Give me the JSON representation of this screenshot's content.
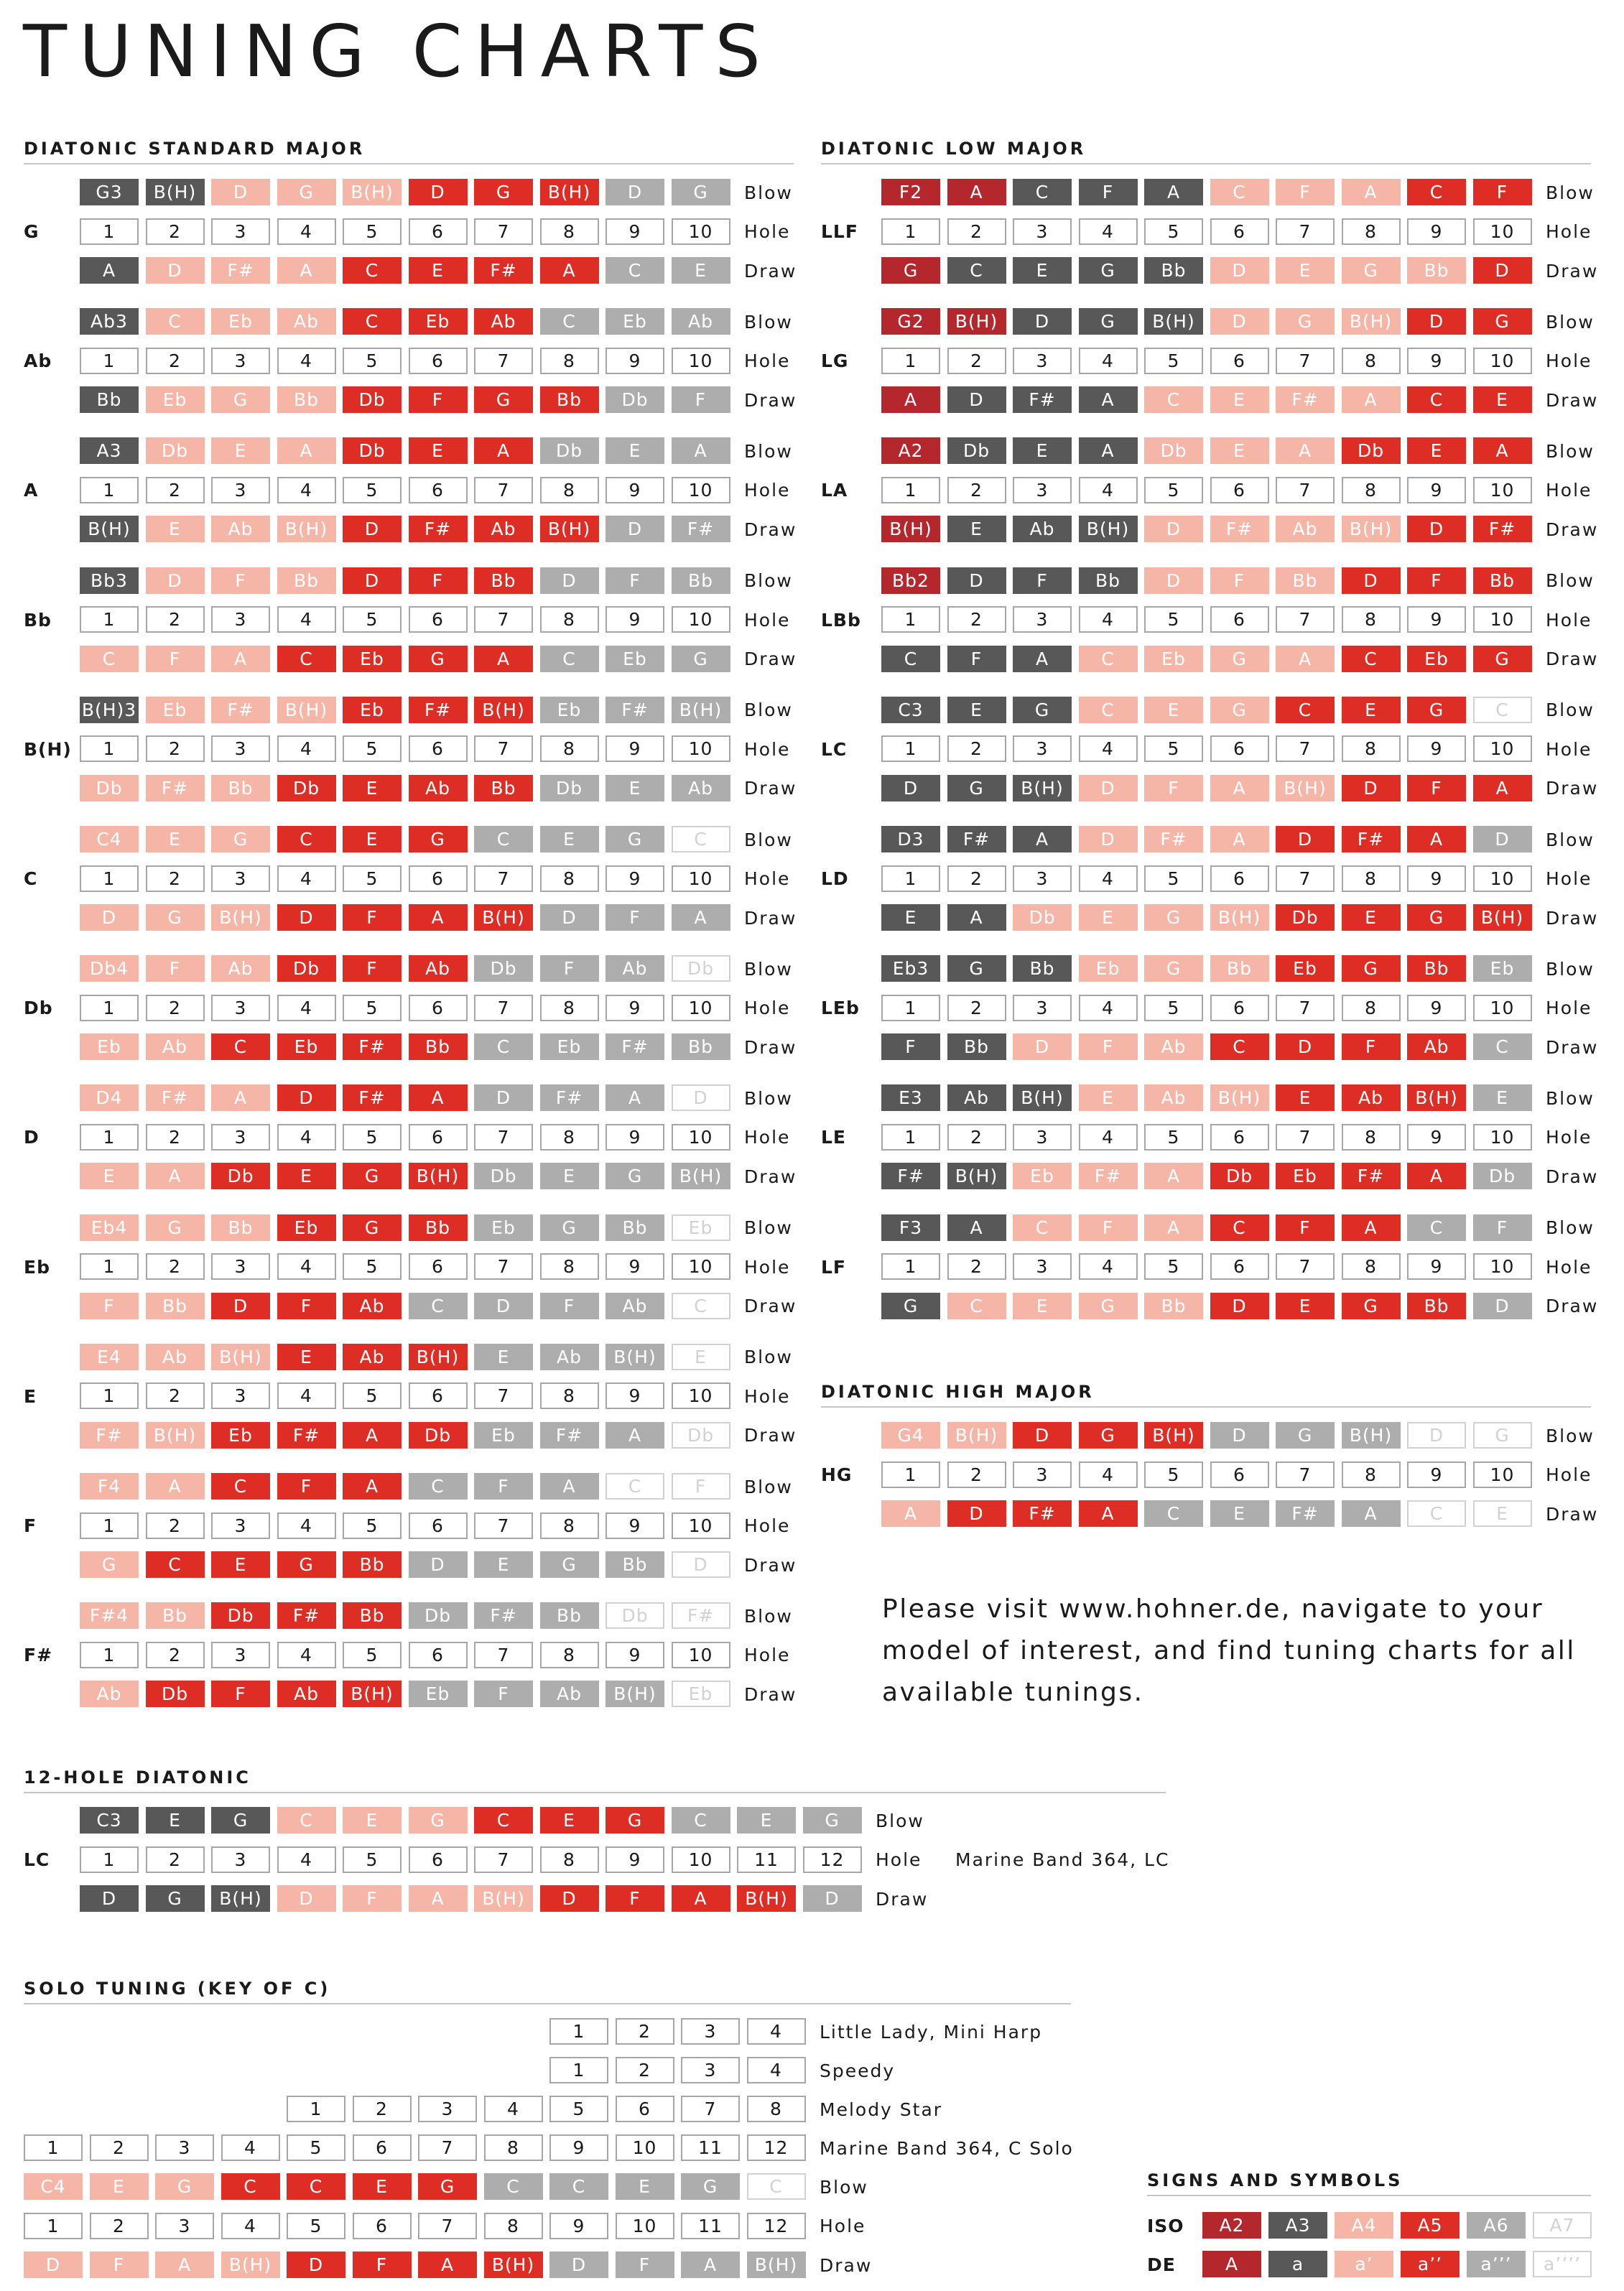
{
  "title": "TUNING CHARTS",
  "labels": {
    "blow": "Blow",
    "hole": "Hole",
    "draw": "Draw"
  },
  "colors": {
    "dark": "#585858",
    "gray": "#adadad",
    "faint": "#d2d2d2",
    "red": "#dd2d24",
    "pink": "#f5b6a8",
    "darkred": "#b3272d",
    "white": "#ffffff",
    "border": "#a6a6a6",
    "text_dark": "#1a1a1a"
  },
  "style_legend": {
    "D": "dark gray, octave 3 (ISO A3)",
    "G": "mid gray, octave 6 (ISO A6)",
    "g": "very light gray, octave 7 (ISO A7)",
    "R": "red, octave 5 (ISO A5)",
    "P": "light pink, octave 4 (ISO A4)",
    "K": "dark red, octave 2 (ISO A2)"
  },
  "sections": {
    "diatonic_standard": {
      "title": "DIATONIC STANDARD MAJOR",
      "charts": [
        {
          "key": "G",
          "blow": [
            "G3",
            "B(H)",
            "D",
            "G",
            "B(H)",
            "D",
            "G",
            "B(H)",
            "D",
            "G"
          ],
          "blow_styles": "DDPPPRRRGG",
          "draw": [
            "A",
            "D",
            "F#",
            "A",
            "C",
            "E",
            "F#",
            "A",
            "C",
            "E"
          ],
          "draw_styles": "DPPPRRRRGG"
        },
        {
          "key": "Ab",
          "blow": [
            "Ab3",
            "C",
            "Eb",
            "Ab",
            "C",
            "Eb",
            "Ab",
            "C",
            "Eb",
            "Ab"
          ],
          "blow_styles": "DPPPRRRGGG",
          "draw": [
            "Bb",
            "Eb",
            "G",
            "Bb",
            "Db",
            "F",
            "G",
            "Bb",
            "Db",
            "F"
          ],
          "draw_styles": "DPPPRRRRGG"
        },
        {
          "key": "A",
          "blow": [
            "A3",
            "Db",
            "E",
            "A",
            "Db",
            "E",
            "A",
            "Db",
            "E",
            "A"
          ],
          "blow_styles": "DPPPRRRGGG",
          "draw": [
            "B(H)",
            "E",
            "Ab",
            "B(H)",
            "D",
            "F#",
            "Ab",
            "B(H)",
            "D",
            "F#"
          ],
          "draw_styles": "DPPPRRRRGG"
        },
        {
          "key": "Bb",
          "blow": [
            "Bb3",
            "D",
            "F",
            "Bb",
            "D",
            "F",
            "Bb",
            "D",
            "F",
            "Bb"
          ],
          "blow_styles": "DPPPRRRGGG",
          "draw": [
            "C",
            "F",
            "A",
            "C",
            "Eb",
            "G",
            "A",
            "C",
            "Eb",
            "G"
          ],
          "draw_styles": "PPPRRRRGGG"
        },
        {
          "key": "B(H)",
          "blow": [
            "B(H)3",
            "Eb",
            "F#",
            "B(H)",
            "Eb",
            "F#",
            "B(H)",
            "Eb",
            "F#",
            "B(H)"
          ],
          "blow_styles": "DPPPRRRGGG",
          "draw": [
            "Db",
            "F#",
            "Bb",
            "Db",
            "E",
            "Ab",
            "Bb",
            "Db",
            "E",
            "Ab"
          ],
          "draw_styles": "PPPRRRRGGG"
        },
        {
          "key": "C",
          "blow": [
            "C4",
            "E",
            "G",
            "C",
            "E",
            "G",
            "C",
            "E",
            "G",
            "C"
          ],
          "blow_styles": "PPPRRRGGGg",
          "draw": [
            "D",
            "G",
            "B(H)",
            "D",
            "F",
            "A",
            "B(H)",
            "D",
            "F",
            "A"
          ],
          "draw_styles": "PPPRRRRGGG"
        },
        {
          "key": "Db",
          "blow": [
            "Db4",
            "F",
            "Ab",
            "Db",
            "F",
            "Ab",
            "Db",
            "F",
            "Ab",
            "Db"
          ],
          "blow_styles": "PPPRRRGGGg",
          "draw": [
            "Eb",
            "Ab",
            "C",
            "Eb",
            "F#",
            "Bb",
            "C",
            "Eb",
            "F#",
            "Bb"
          ],
          "draw_styles": "PPRRRRGGGG"
        },
        {
          "key": "D",
          "blow": [
            "D4",
            "F#",
            "A",
            "D",
            "F#",
            "A",
            "D",
            "F#",
            "A",
            "D"
          ],
          "blow_styles": "PPPRRRGGGg",
          "draw": [
            "E",
            "A",
            "Db",
            "E",
            "G",
            "B(H)",
            "Db",
            "E",
            "G",
            "B(H)"
          ],
          "draw_styles": "PPRRRRGGGG"
        },
        {
          "key": "Eb",
          "blow": [
            "Eb4",
            "G",
            "Bb",
            "Eb",
            "G",
            "Bb",
            "Eb",
            "G",
            "Bb",
            "Eb"
          ],
          "blow_styles": "PPPRRRGGGg",
          "draw": [
            "F",
            "Bb",
            "D",
            "F",
            "Ab",
            "C",
            "D",
            "F",
            "Ab",
            "C"
          ],
          "draw_styles": "PPRRRGGGGg"
        },
        {
          "key": "E",
          "blow": [
            "E4",
            "Ab",
            "B(H)",
            "E",
            "Ab",
            "B(H)",
            "E",
            "Ab",
            "B(H)",
            "E"
          ],
          "blow_styles": "PPPRRRGGGg",
          "draw": [
            "F#",
            "B(H)",
            "Eb",
            "F#",
            "A",
            "Db",
            "Eb",
            "F#",
            "A",
            "Db"
          ],
          "draw_styles": "PPRRRRGGGg"
        },
        {
          "key": "F",
          "blow": [
            "F4",
            "A",
            "C",
            "F",
            "A",
            "C",
            "F",
            "A",
            "C",
            "F"
          ],
          "blow_styles": "PPRRRGGGgg",
          "draw": [
            "G",
            "C",
            "E",
            "G",
            "Bb",
            "D",
            "E",
            "G",
            "Bb",
            "D"
          ],
          "draw_styles": "PRRRRGGGGg"
        },
        {
          "key": "F#",
          "blow": [
            "F#4",
            "Bb",
            "Db",
            "F#",
            "Bb",
            "Db",
            "F#",
            "Bb",
            "Db",
            "F#"
          ],
          "blow_styles": "PPRRRGGGgg",
          "draw": [
            "Ab",
            "Db",
            "F",
            "Ab",
            "B(H)",
            "Eb",
            "F",
            "Ab",
            "B(H)",
            "Eb"
          ],
          "draw_styles": "PRRRRGGGGg"
        }
      ]
    },
    "diatonic_low": {
      "title": "DIATONIC LOW MAJOR",
      "charts": [
        {
          "key": "LLF",
          "blow": [
            "F2",
            "A",
            "C",
            "F",
            "A",
            "C",
            "F",
            "A",
            "C",
            "F"
          ],
          "blow_styles": "KKDDDPPPRR",
          "draw": [
            "G",
            "C",
            "E",
            "G",
            "Bb",
            "D",
            "E",
            "G",
            "Bb",
            "D"
          ],
          "draw_styles": "KDDDDPPPPR"
        },
        {
          "key": "LG",
          "blow": [
            "G2",
            "B(H)",
            "D",
            "G",
            "B(H)",
            "D",
            "G",
            "B(H)",
            "D",
            "G"
          ],
          "blow_styles": "KKDDDPPPRR",
          "draw": [
            "A",
            "D",
            "F#",
            "A",
            "C",
            "E",
            "F#",
            "A",
            "C",
            "E"
          ],
          "draw_styles": "KDDDPPPPRR"
        },
        {
          "key": "LA",
          "blow": [
            "A2",
            "Db",
            "E",
            "A",
            "Db",
            "E",
            "A",
            "Db",
            "E",
            "A"
          ],
          "blow_styles": "KDDDPPPRRR",
          "draw": [
            "B(H)",
            "E",
            "Ab",
            "B(H)",
            "D",
            "F#",
            "Ab",
            "B(H)",
            "D",
            "F#"
          ],
          "draw_styles": "KDDDPPPPRR"
        },
        {
          "key": "LBb",
          "blow": [
            "Bb2",
            "D",
            "F",
            "Bb",
            "D",
            "F",
            "Bb",
            "D",
            "F",
            "Bb"
          ],
          "blow_styles": "KDDDPPPRRR",
          "draw": [
            "C",
            "F",
            "A",
            "C",
            "Eb",
            "G",
            "A",
            "C",
            "Eb",
            "G"
          ],
          "draw_styles": "DDDPPPPRRR"
        },
        {
          "key": "LC",
          "blow": [
            "C3",
            "E",
            "G",
            "C",
            "E",
            "G",
            "C",
            "E",
            "G",
            "C"
          ],
          "blow_styles": "DDDPPPRRRg",
          "draw": [
            "D",
            "G",
            "B(H)",
            "D",
            "F",
            "A",
            "B(H)",
            "D",
            "F",
            "A"
          ],
          "draw_styles": "DDDPPPPRRR"
        },
        {
          "key": "LD",
          "blow": [
            "D3",
            "F#",
            "A",
            "D",
            "F#",
            "A",
            "D",
            "F#",
            "A",
            "D"
          ],
          "blow_styles": "DDDPPPRRRG",
          "draw": [
            "E",
            "A",
            "Db",
            "E",
            "G",
            "B(H)",
            "Db",
            "E",
            "G",
            "B(H)"
          ],
          "draw_styles": "DDPPPPRRRR"
        },
        {
          "key": "LEb",
          "blow": [
            "Eb3",
            "G",
            "Bb",
            "Eb",
            "G",
            "Bb",
            "Eb",
            "G",
            "Bb",
            "Eb"
          ],
          "blow_styles": "DDDPPPRRRG",
          "draw": [
            "F",
            "Bb",
            "D",
            "F",
            "Ab",
            "C",
            "D",
            "F",
            "Ab",
            "C"
          ],
          "draw_styles": "DDPPPRRRRG"
        },
        {
          "key": "LE",
          "blow": [
            "E3",
            "Ab",
            "B(H)",
            "E",
            "Ab",
            "B(H)",
            "E",
            "Ab",
            "B(H)",
            "E"
          ],
          "blow_styles": "DDDPPPRRRG",
          "draw": [
            "F#",
            "B(H)",
            "Eb",
            "F#",
            "A",
            "Db",
            "Eb",
            "F#",
            "A",
            "Db"
          ],
          "draw_styles": "DDPPPRRRRG"
        },
        {
          "key": "LF",
          "blow": [
            "F3",
            "A",
            "C",
            "F",
            "A",
            "C",
            "F",
            "A",
            "C",
            "F"
          ],
          "blow_styles": "DDPPPRRRGG",
          "draw": [
            "G",
            "C",
            "E",
            "G",
            "Bb",
            "D",
            "E",
            "G",
            "Bb",
            "D"
          ],
          "draw_styles": "DPPPPRRRRG"
        }
      ]
    },
    "diatonic_high": {
      "title": "DIATONIC HIGH MAJOR",
      "charts": [
        {
          "key": "HG",
          "blow": [
            "G4",
            "B(H)",
            "D",
            "G",
            "B(H)",
            "D",
            "G",
            "B(H)",
            "D",
            "G"
          ],
          "blow_styles": "PPRRRGGGgg",
          "draw": [
            "A",
            "D",
            "F#",
            "A",
            "C",
            "E",
            "F#",
            "A",
            "C",
            "E"
          ],
          "draw_styles": "PRRRGGGGgg"
        }
      ]
    },
    "twelve_hole": {
      "title": "12-HOLE DIATONIC",
      "key": "LC",
      "note": "Marine Band 364, LC",
      "blow": [
        "C3",
        "E",
        "G",
        "C",
        "E",
        "G",
        "C",
        "E",
        "G",
        "C",
        "E",
        "G"
      ],
      "blow_styles": "DDDPPPRRRGGG",
      "draw": [
        "D",
        "G",
        "B(H)",
        "D",
        "F",
        "A",
        "B(H)",
        "D",
        "F",
        "A",
        "B(H)",
        "D"
      ],
      "draw_styles": "DDDPPPPRRRRG"
    },
    "solo": {
      "title": "SOLO TUNING (KEY OF C)",
      "rows": [
        {
          "holes": 4,
          "note": "Little Lady, Mini Harp"
        },
        {
          "holes": 4,
          "note": "Speedy"
        },
        {
          "holes": 8,
          "note": "Melody Star"
        },
        {
          "holes": 12,
          "note": "Marine Band 364, C Solo"
        }
      ],
      "blow": [
        "C4",
        "E",
        "G",
        "C",
        "C",
        "E",
        "G",
        "C",
        "C",
        "E",
        "G",
        "C"
      ],
      "blow_styles": "PPPRRRRGGGGg",
      "draw": [
        "D",
        "F",
        "A",
        "B(H)",
        "D",
        "F",
        "A",
        "B(H)",
        "D",
        "F",
        "A",
        "B(H)"
      ],
      "draw_styles": "PPPPRRRRGGGG"
    },
    "signs": {
      "title": "SIGNS AND SYMBOLS",
      "rows": [
        {
          "label": "ISO",
          "values": [
            "A2",
            "A3",
            "A4",
            "A5",
            "A6",
            "A7"
          ]
        },
        {
          "label": "DE",
          "values": [
            "A",
            "a",
            "a’",
            "a’’",
            "a’’’",
            "a’’’’"
          ]
        }
      ],
      "styles": "KDPRGg"
    }
  },
  "info_lines": [
    "Please visit www.hohner.de, navigate to your",
    "model of interest, and find tuning charts for all",
    "available tunings."
  ]
}
